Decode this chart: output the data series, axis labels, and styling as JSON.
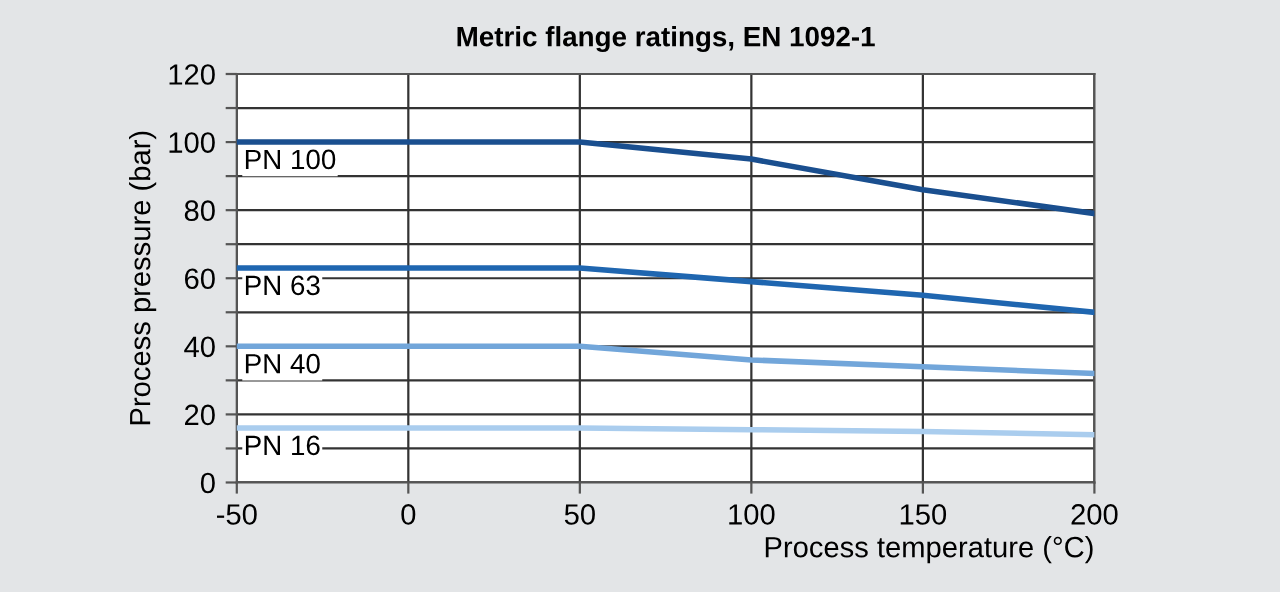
{
  "chart_data": {
    "type": "line",
    "title": "Metric flange ratings, EN 1092-1",
    "xlabel": "Process temperature (°C)",
    "ylabel": "Process pressure (bar)",
    "x": [
      -50,
      50,
      100,
      150,
      200
    ],
    "series": [
      {
        "name": "PN 100",
        "color": "#1a4f8f",
        "values": [
          100,
          100,
          95,
          86,
          79
        ]
      },
      {
        "name": "PN 63",
        "color": "#1f66b0",
        "values": [
          63,
          63,
          59,
          55,
          50
        ]
      },
      {
        "name": "PN 40",
        "color": "#72a6da",
        "values": [
          40,
          40,
          36,
          34,
          32
        ]
      },
      {
        "name": "PN 16",
        "color": "#aacdee",
        "values": [
          16,
          16,
          15.5,
          15,
          14
        ]
      }
    ],
    "xlim": [
      -50,
      200
    ],
    "xticks": [
      -50,
      0,
      50,
      100,
      150,
      200
    ],
    "ylim": [
      0,
      120
    ],
    "yticks": [
      0,
      {
        "value": 10,
        "label": null
      },
      20,
      {
        "value": 30,
        "label": null
      },
      40,
      {
        "value": 50,
        "label": null
      },
      60,
      {
        "value": 70,
        "label": null
      },
      80,
      {
        "value": 90,
        "label": null
      },
      100,
      {
        "value": 110,
        "label": null
      },
      120
    ],
    "grid": true,
    "legend": false,
    "marker": "none",
    "line_style": "solid"
  }
}
